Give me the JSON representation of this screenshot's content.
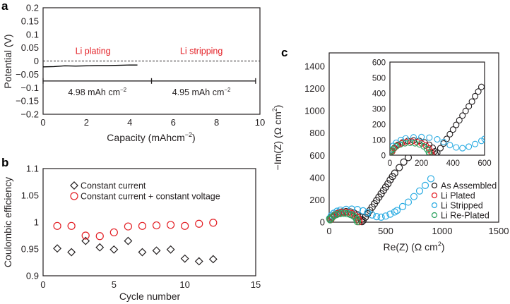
{
  "chart_data": [
    {
      "panel": "a",
      "type": "line",
      "xlabel": {
        "text": "Capacity (mAhcm",
        "sup": "−2",
        "tail": ")"
      },
      "ylabel": "Potential (V)",
      "xlim": [
        0,
        10
      ],
      "ylim": [
        -0.2,
        0.2
      ],
      "xticks": [
        0,
        2,
        4,
        6,
        8,
        10
      ],
      "xtick_labels": [
        "0",
        "2",
        "4",
        "6",
        "8",
        "10"
      ],
      "yticks": [
        0.2,
        0.15,
        0.1,
        0.05,
        0,
        -0.05,
        -0.1,
        -0.15,
        -0.2
      ],
      "ytick_labels": [
        "0.2",
        "0.15",
        "0.1",
        "0.05",
        "0",
        "−0.05",
        "−0.1",
        "−0.15",
        "−0.2"
      ],
      "series": [
        {
          "color": "#000000",
          "points": [
            [
              0,
              -0.022
            ],
            [
              0.5,
              -0.021
            ],
            [
              1,
              -0.018
            ],
            [
              1.5,
              -0.019
            ],
            [
              2,
              -0.018
            ],
            [
              2.5,
              -0.017
            ],
            [
              3,
              -0.017
            ],
            [
              3.5,
              -0.016
            ],
            [
              4,
              -0.015
            ],
            [
              4.35,
              -0.015
            ]
          ]
        }
      ],
      "reference_line": {
        "y": 0,
        "style": "dashed"
      },
      "capacity_bar": {
        "y": -0.075,
        "x_start": 0,
        "x_mid": 5,
        "x_end": 9.8
      },
      "annotations": [
        {
          "text": "Li plating",
          "x": 2.3,
          "y": 0.04,
          "color": "#e31e24"
        },
        {
          "text": "Li stripping",
          "x": 7.3,
          "y": 0.04,
          "color": "#e31e24"
        },
        {
          "text": "4.98 mAh cm",
          "sup": "−2",
          "x": 2.5,
          "y": -0.115,
          "color": "#231f20"
        },
        {
          "text": "4.95 mAh cm",
          "sup": "−2",
          "x": 7.3,
          "y": -0.115,
          "color": "#231f20"
        }
      ]
    },
    {
      "panel": "b",
      "type": "scatter",
      "xlabel": "Cycle number",
      "ylabel": "Coulombic efficiency",
      "xlim": [
        0,
        15
      ],
      "ylim": [
        0.9,
        1.1
      ],
      "xticks": [
        0,
        5,
        10,
        15
      ],
      "xtick_labels": [
        "0",
        "5",
        "10",
        "15"
      ],
      "yticks": [
        1.1,
        1.05,
        1,
        0.95,
        0.9
      ],
      "ytick_labels": [
        "1.1",
        "1.05",
        "1",
        "0.95",
        "0.9"
      ],
      "legend_position": "top-left",
      "x": [
        1,
        2,
        3,
        4,
        5,
        6,
        7,
        8,
        9,
        10,
        11,
        12
      ],
      "series": [
        {
          "name": "Constant current",
          "marker": "diamond",
          "color": "#231f20",
          "values": [
            0.951,
            0.944,
            0.965,
            0.953,
            0.949,
            0.965,
            0.944,
            0.947,
            0.949,
            0.932,
            0.927,
            0.931
          ]
        },
        {
          "name": "Constant current + constant voltage",
          "marker": "circle",
          "color": "#e31e24",
          "values": [
            0.993,
            0.993,
            0.975,
            0.974,
            0.981,
            0.992,
            0.993,
            0.994,
            0.995,
            0.993,
            0.997,
            0.999
          ]
        }
      ]
    },
    {
      "panel": "c",
      "type": "scatter",
      "xlabel": {
        "text": "Re(Z) (Ω cm",
        "sup": "2",
        "tail": ")"
      },
      "ylabel": {
        "text": "−Im(Z) (Ω cm",
        "sup": "2",
        "tail": ")"
      },
      "xlim": [
        0,
        1500
      ],
      "ylim": [
        0,
        1500
      ],
      "xticks": [
        0,
        500,
        1000,
        1500
      ],
      "xtick_labels": [
        "0",
        "500",
        "1000",
        "1500"
      ],
      "yticks": [
        0,
        200,
        400,
        600,
        800,
        1000,
        1200,
        1400
      ],
      "ytick_labels": [
        "0",
        "200",
        "400",
        "600",
        "800",
        "1000",
        "1200",
        "1400"
      ],
      "legend_position": "bottom-right",
      "inset": {
        "xlim": [
          0,
          600
        ],
        "ylim": [
          0,
          600
        ],
        "xticks": [
          0,
          200,
          400,
          600
        ],
        "xtick_labels": [
          "0",
          "200",
          "400",
          "600"
        ],
        "yticks": [
          0,
          100,
          200,
          300,
          400,
          500,
          600
        ],
        "ytick_labels": [
          "0",
          "100",
          "200",
          "300",
          "400",
          "500",
          "600"
        ]
      },
      "series": [
        {
          "name": "As Assembled",
          "color": "#231f20",
          "points": [
            [
              10,
              30
            ],
            [
              15,
              25
            ],
            [
              29,
              48
            ],
            [
              51,
              67
            ],
            [
              80,
              82
            ],
            [
              114,
              92
            ],
            [
              150,
              95
            ],
            [
              186,
              92
            ],
            [
              220,
              82
            ],
            [
              249,
              67
            ],
            [
              271,
              48
            ],
            [
              285,
              25
            ],
            [
              290,
              5
            ],
            [
              300,
              15
            ],
            [
              320,
              45
            ],
            [
              340,
              75
            ],
            [
              360,
              105
            ],
            [
              380,
              135
            ],
            [
              400,
              165
            ],
            [
              420,
              195
            ],
            [
              440,
              225
            ],
            [
              460,
              255
            ],
            [
              480,
              285
            ],
            [
              500,
              315
            ],
            [
              520,
              345
            ],
            [
              540,
              380
            ],
            [
              560,
              410
            ],
            [
              580,
              440
            ],
            [
              620,
              490
            ],
            [
              660,
              540
            ],
            [
              700,
              580
            ],
            [
              750,
              650
            ],
            [
              800,
              720
            ],
            [
              900,
              860
            ],
            [
              1000,
              1000
            ]
          ]
        },
        {
          "name": "Li Plated",
          "color": "#e31e24",
          "points": [
            [
              10,
              30
            ],
            [
              14,
              23
            ],
            [
              27,
              44
            ],
            [
              47,
              62
            ],
            [
              74,
              76
            ],
            [
              104,
              85
            ],
            [
              138,
              88
            ],
            [
              171,
              85
            ],
            [
              201,
              76
            ],
            [
              228,
              62
            ],
            [
              248,
              44
            ],
            [
              261,
              23
            ],
            [
              265,
              5
            ]
          ]
        },
        {
          "name": "Li Stripped",
          "color": "#29abe2",
          "points": [
            [
              5,
              35
            ],
            [
              20,
              60
            ],
            [
              40,
              80
            ],
            [
              70,
              98
            ],
            [
              100,
              108
            ],
            [
              150,
              115
            ],
            [
              200,
              117
            ],
            [
              250,
              113
            ],
            [
              300,
              102
            ],
            [
              340,
              85
            ],
            [
              380,
              65
            ],
            [
              420,
              50
            ],
            [
              460,
              45
            ],
            [
              500,
              55
            ],
            [
              540,
              72
            ],
            [
              580,
              92
            ],
            [
              600,
              105
            ],
            [
              650,
              140
            ],
            [
              700,
              180
            ],
            [
              750,
              230
            ],
            [
              800,
              280
            ],
            [
              850,
              330
            ],
            [
              900,
              390
            ]
          ]
        },
        {
          "name": "Li Re-Plated",
          "color": "#2ca25f",
          "points": [
            [
              5,
              30
            ],
            [
              9,
              21
            ],
            [
              21,
              40
            ],
            [
              41,
              57
            ],
            [
              66,
              69
            ],
            [
              96,
              77
            ],
            [
              128,
              80
            ],
            [
              159,
              77
            ],
            [
              189,
              69
            ],
            [
              214,
              57
            ],
            [
              234,
              40
            ],
            [
              246,
              21
            ],
            [
              250,
              5
            ]
          ]
        }
      ]
    }
  ],
  "panel_labels": [
    "a",
    "b",
    "c"
  ]
}
